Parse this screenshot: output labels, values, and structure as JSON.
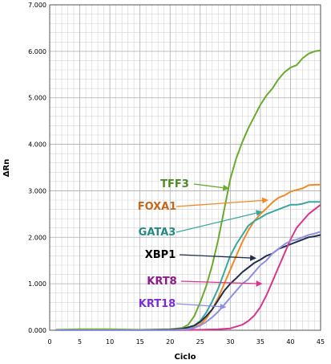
{
  "chart_data": {
    "type": "line",
    "xlabel": "Ciclo",
    "ylabel": "ΔRn",
    "xlim": [
      0,
      45
    ],
    "ylim": [
      0,
      7
    ],
    "x_ticks": [
      0,
      5,
      10,
      15,
      20,
      25,
      30,
      35,
      40,
      45
    ],
    "y_ticks": [
      "0.000",
      "1.000",
      "2.000",
      "3.000",
      "4.000",
      "5.000",
      "6.000",
      "7.000"
    ],
    "grid": true,
    "series": [
      {
        "name": "TFF3",
        "color": "#6aaa2e",
        "label_color": "#4f8a24",
        "points": [
          [
            1,
            0.01
          ],
          [
            5,
            0.02
          ],
          [
            10,
            0.02
          ],
          [
            15,
            0.01
          ],
          [
            20,
            0.02
          ],
          [
            22,
            0.05
          ],
          [
            23,
            0.12
          ],
          [
            24,
            0.3
          ],
          [
            25,
            0.6
          ],
          [
            26,
            0.95
          ],
          [
            27,
            1.4
          ],
          [
            28,
            1.95
          ],
          [
            29,
            2.6
          ],
          [
            30,
            3.25
          ],
          [
            31,
            3.7
          ],
          [
            32,
            4.05
          ],
          [
            33,
            4.35
          ],
          [
            34,
            4.6
          ],
          [
            35,
            4.85
          ],
          [
            36,
            5.05
          ],
          [
            37,
            5.2
          ],
          [
            38,
            5.4
          ],
          [
            39,
            5.55
          ],
          [
            40,
            5.65
          ],
          [
            41,
            5.7
          ],
          [
            42,
            5.85
          ],
          [
            43,
            5.95
          ],
          [
            44,
            6.0
          ],
          [
            45,
            6.02
          ]
        ],
        "annotation_point": [
          30,
          3.05
        ]
      },
      {
        "name": "FOXA1",
        "color": "#f08a26",
        "label_color": "#c8661a",
        "points": [
          [
            1,
            0.0
          ],
          [
            15,
            0.0
          ],
          [
            20,
            0.01
          ],
          [
            23,
            0.03
          ],
          [
            25,
            0.12
          ],
          [
            26,
            0.25
          ],
          [
            27,
            0.45
          ],
          [
            28,
            0.7
          ],
          [
            29,
            1.0
          ],
          [
            30,
            1.3
          ],
          [
            31,
            1.6
          ],
          [
            32,
            1.9
          ],
          [
            33,
            2.15
          ],
          [
            34,
            2.35
          ],
          [
            35,
            2.5
          ],
          [
            36,
            2.62
          ],
          [
            37,
            2.75
          ],
          [
            38,
            2.85
          ],
          [
            39,
            2.9
          ],
          [
            40,
            2.98
          ],
          [
            41,
            3.02
          ],
          [
            42,
            3.05
          ],
          [
            43,
            3.12
          ],
          [
            44,
            3.13
          ],
          [
            45,
            3.13
          ]
        ],
        "annotation_point": [
          36.5,
          2.8
        ]
      },
      {
        "name": "GATA3",
        "color": "#3aa6a0",
        "label_color": "#238a86",
        "points": [
          [
            1,
            0.0
          ],
          [
            15,
            0.0
          ],
          [
            20,
            0.01
          ],
          [
            23,
            0.04
          ],
          [
            24,
            0.1
          ],
          [
            25,
            0.2
          ],
          [
            26,
            0.38
          ],
          [
            27,
            0.62
          ],
          [
            28,
            0.9
          ],
          [
            29,
            1.25
          ],
          [
            30,
            1.6
          ],
          [
            31,
            1.85
          ],
          [
            32,
            2.05
          ],
          [
            33,
            2.25
          ],
          [
            34,
            2.35
          ],
          [
            35,
            2.42
          ],
          [
            36,
            2.5
          ],
          [
            37,
            2.55
          ],
          [
            38,
            2.6
          ],
          [
            39,
            2.65
          ],
          [
            40,
            2.7
          ],
          [
            41,
            2.7
          ],
          [
            42,
            2.72
          ],
          [
            43,
            2.76
          ],
          [
            44,
            2.76
          ],
          [
            45,
            2.76
          ]
        ],
        "annotation_point": [
          35.5,
          2.55
        ]
      },
      {
        "name": "XBP1",
        "color": "#1f2f4a",
        "label_color": "#000000",
        "points": [
          [
            1,
            0.0
          ],
          [
            15,
            0.0
          ],
          [
            20,
            0.01
          ],
          [
            22,
            0.03
          ],
          [
            24,
            0.1
          ],
          [
            25,
            0.18
          ],
          [
            26,
            0.3
          ],
          [
            27,
            0.45
          ],
          [
            28,
            0.65
          ],
          [
            29,
            0.85
          ],
          [
            30,
            1.0
          ],
          [
            31,
            1.12
          ],
          [
            32,
            1.25
          ],
          [
            33,
            1.35
          ],
          [
            34,
            1.45
          ],
          [
            35,
            1.52
          ],
          [
            36,
            1.6
          ],
          [
            37,
            1.65
          ],
          [
            38,
            1.75
          ],
          [
            39,
            1.8
          ],
          [
            40,
            1.85
          ],
          [
            41,
            1.9
          ],
          [
            42,
            1.95
          ],
          [
            43,
            2.0
          ],
          [
            44,
            2.02
          ],
          [
            45,
            2.05
          ]
        ],
        "annotation_point": [
          34.5,
          1.55
        ]
      },
      {
        "name": "KRT8",
        "color": "#d8368e",
        "label_color": "#8e1a8a",
        "points": [
          [
            1,
            0.0
          ],
          [
            20,
            0.0
          ],
          [
            25,
            0.01
          ],
          [
            28,
            0.02
          ],
          [
            30,
            0.04
          ],
          [
            31,
            0.08
          ],
          [
            32,
            0.12
          ],
          [
            33,
            0.2
          ],
          [
            34,
            0.32
          ],
          [
            35,
            0.5
          ],
          [
            36,
            0.75
          ],
          [
            37,
            1.05
          ],
          [
            38,
            1.35
          ],
          [
            39,
            1.65
          ],
          [
            40,
            1.95
          ],
          [
            41,
            2.2
          ],
          [
            42,
            2.35
          ],
          [
            43,
            2.5
          ],
          [
            44,
            2.6
          ],
          [
            45,
            2.7
          ]
        ],
        "annotation_point": [
          35.5,
          1.0
        ]
      },
      {
        "name": "KRT18",
        "color": "#8f8fe0",
        "label_color": "#7a30d0",
        "points": [
          [
            1,
            0.0
          ],
          [
            20,
            0.0
          ],
          [
            23,
            0.02
          ],
          [
            24,
            0.05
          ],
          [
            25,
            0.1
          ],
          [
            26,
            0.18
          ],
          [
            27,
            0.28
          ],
          [
            28,
            0.4
          ],
          [
            29,
            0.55
          ],
          [
            30,
            0.7
          ],
          [
            31,
            0.85
          ],
          [
            32,
            1.0
          ],
          [
            33,
            1.1
          ],
          [
            34,
            1.25
          ],
          [
            35,
            1.4
          ],
          [
            36,
            1.5
          ],
          [
            37,
            1.65
          ],
          [
            38,
            1.75
          ],
          [
            39,
            1.85
          ],
          [
            40,
            1.92
          ],
          [
            41,
            1.95
          ],
          [
            42,
            2.0
          ],
          [
            43,
            2.05
          ],
          [
            44,
            2.08
          ],
          [
            45,
            2.12
          ]
        ],
        "annotation_point": [
          29.5,
          0.5
        ]
      }
    ]
  }
}
